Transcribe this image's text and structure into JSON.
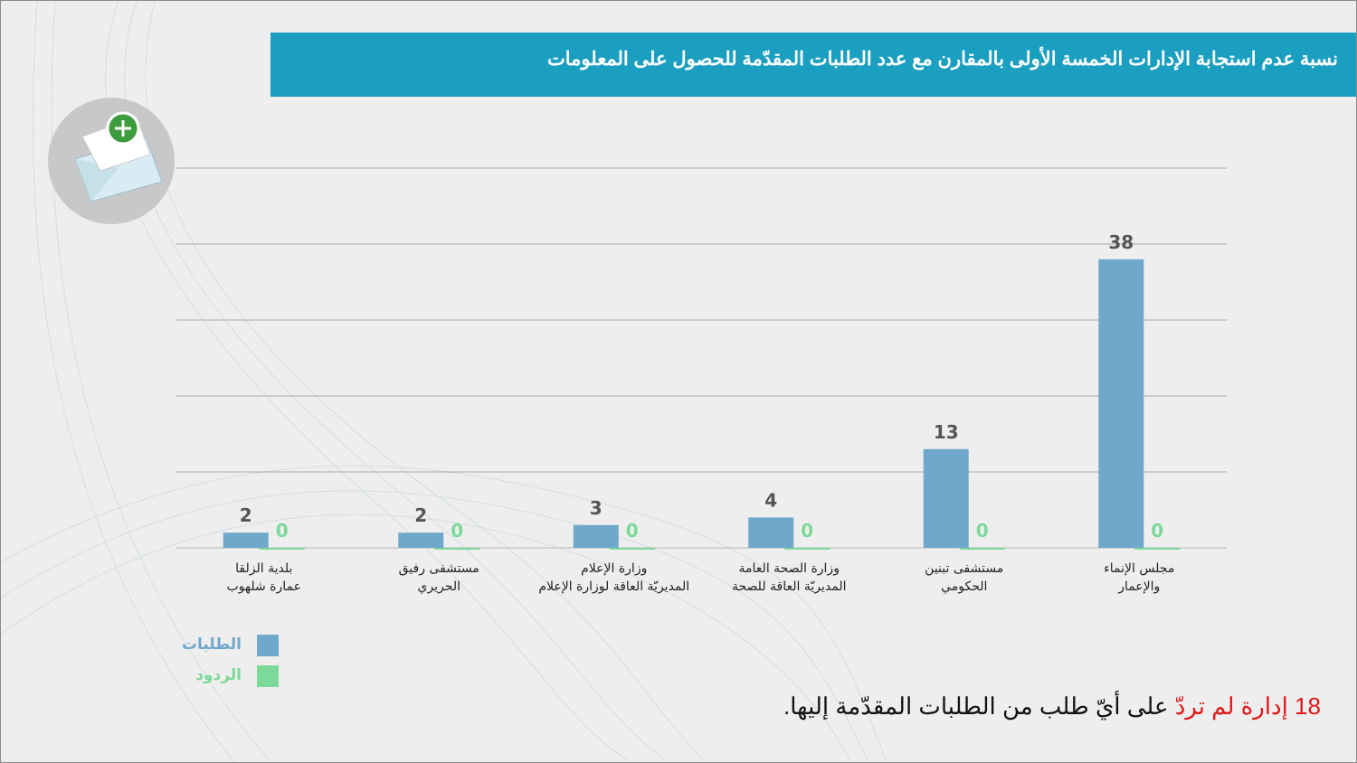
{
  "chart_data": {
    "type": "bar",
    "title": "نسبة عدم استجابة الإدارات الخمسة الأولى بالمقارن مع عدد الطلبات المقدّمة للحصول على المعلومات",
    "categories": [
      "مجلس الإنماء\nوالإعمار",
      "مستشفى تبنين\nالحكومي",
      "وزارة الصحة العامة\nالمديريّة العاقة للصحة",
      "وزارة الإعلام\nالمديريّة العاقة لوزارة الإعلام",
      "مستشفى رفيق\nالحريري",
      "بلدية الزلقا\nعمارة شلهوب"
    ],
    "series": [
      {
        "name": "الطلبات",
        "color": "#6fa8cb",
        "values": [
          38,
          13,
          4,
          3,
          2,
          2
        ]
      },
      {
        "name": "الردود",
        "color": "#7dd99a",
        "values": [
          0,
          0,
          0,
          0,
          0,
          0
        ]
      }
    ],
    "ylim": [
      0,
      50
    ],
    "yticks": [
      0,
      10,
      20,
      30,
      40,
      50
    ],
    "grid": true,
    "note_highlight": "18 إدارة لم تردّ",
    "note_text": "على أيّ طلب من الطلبات المقدّمة إليها."
  }
}
